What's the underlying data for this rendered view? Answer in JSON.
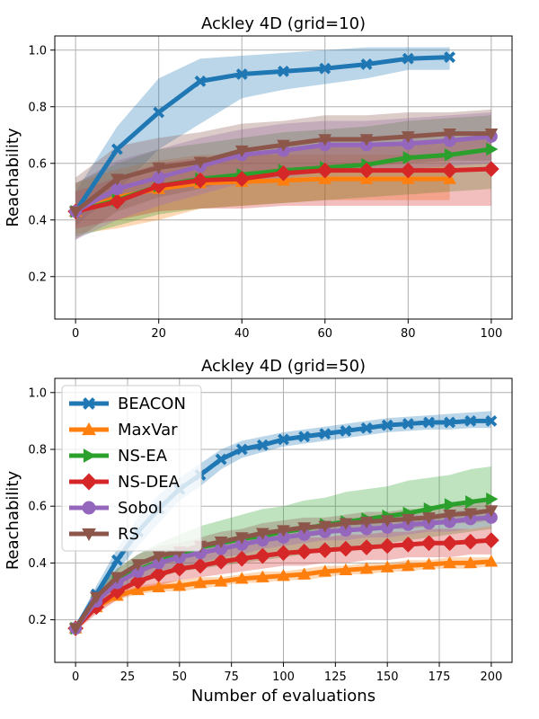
{
  "chart_data": [
    {
      "type": "line",
      "title": "Ackley 4D (grid=10)",
      "xlabel": "",
      "ylabel": "Reachability",
      "xlim": [
        -5,
        105
      ],
      "ylim": [
        0.05,
        1.05
      ],
      "xticks": [
        0,
        20,
        40,
        60,
        80,
        100
      ],
      "yticks": [
        0.2,
        0.4,
        0.6,
        0.8,
        1.0
      ],
      "grid": true,
      "series": [
        {
          "name": "BEACON",
          "color": "#1f77b4",
          "marker": "X",
          "x": [
            0,
            10,
            20,
            30,
            40,
            50,
            60,
            70,
            80,
            90
          ],
          "y": [
            0.43,
            0.65,
            0.78,
            0.89,
            0.915,
            0.925,
            0.935,
            0.95,
            0.97,
            0.975
          ],
          "lower": [
            0.38,
            0.5,
            0.65,
            0.74,
            0.83,
            0.86,
            0.88,
            0.9,
            0.93,
            0.93
          ],
          "upper": [
            0.5,
            0.73,
            0.9,
            0.97,
            0.98,
            0.99,
            1.0,
            1.01,
            1.01,
            1.01
          ]
        },
        {
          "name": "MaxVar",
          "color": "#ff7f0e",
          "marker": "^",
          "x": [
            0,
            10,
            20,
            30,
            40,
            50,
            60,
            70,
            80,
            90
          ],
          "y": [
            0.43,
            0.48,
            0.51,
            0.53,
            0.535,
            0.54,
            0.545,
            0.545,
            0.545,
            0.545
          ],
          "lower": [
            0.35,
            0.37,
            0.4,
            0.44,
            0.45,
            0.46,
            0.47,
            0.47,
            0.47,
            0.47
          ],
          "upper": [
            0.53,
            0.58,
            0.61,
            0.63,
            0.63,
            0.63,
            0.63,
            0.63,
            0.63,
            0.63
          ]
        },
        {
          "name": "NS-EA",
          "color": "#2ca02c",
          "marker": ">",
          "x": [
            0,
            10,
            20,
            30,
            40,
            50,
            60,
            70,
            80,
            90,
            100
          ],
          "y": [
            0.43,
            0.47,
            0.52,
            0.545,
            0.56,
            0.575,
            0.585,
            0.595,
            0.62,
            0.63,
            0.65
          ],
          "lower": [
            0.34,
            0.38,
            0.42,
            0.44,
            0.45,
            0.46,
            0.47,
            0.48,
            0.49,
            0.5,
            0.51
          ],
          "upper": [
            0.53,
            0.6,
            0.65,
            0.67,
            0.69,
            0.71,
            0.72,
            0.73,
            0.75,
            0.76,
            0.77
          ]
        },
        {
          "name": "NS-DEA",
          "color": "#d62728",
          "marker": "D",
          "x": [
            0,
            10,
            20,
            30,
            40,
            50,
            60,
            70,
            80,
            90,
            100
          ],
          "y": [
            0.43,
            0.465,
            0.52,
            0.54,
            0.545,
            0.565,
            0.575,
            0.575,
            0.575,
            0.575,
            0.58
          ],
          "lower": [
            0.37,
            0.4,
            0.43,
            0.44,
            0.44,
            0.45,
            0.45,
            0.45,
            0.45,
            0.45,
            0.45
          ],
          "upper": [
            0.5,
            0.55,
            0.6,
            0.62,
            0.63,
            0.65,
            0.66,
            0.66,
            0.67,
            0.68,
            0.7
          ]
        },
        {
          "name": "Sobol",
          "color": "#9467bd",
          "marker": "o",
          "x": [
            0,
            10,
            20,
            30,
            40,
            50,
            60,
            70,
            80,
            90,
            100
          ],
          "y": [
            0.43,
            0.51,
            0.55,
            0.59,
            0.63,
            0.645,
            0.665,
            0.665,
            0.67,
            0.68,
            0.695
          ],
          "lower": [
            0.33,
            0.4,
            0.45,
            0.49,
            0.53,
            0.55,
            0.57,
            0.57,
            0.58,
            0.59,
            0.6
          ],
          "upper": [
            0.53,
            0.61,
            0.65,
            0.69,
            0.72,
            0.74,
            0.75,
            0.75,
            0.76,
            0.77,
            0.78
          ]
        },
        {
          "name": "RS",
          "color": "#8c564b",
          "marker": "v",
          "x": [
            0,
            10,
            20,
            30,
            40,
            50,
            60,
            70,
            80,
            90,
            100
          ],
          "y": [
            0.43,
            0.545,
            0.585,
            0.605,
            0.645,
            0.665,
            0.685,
            0.685,
            0.695,
            0.705,
            0.705
          ],
          "lower": [
            0.33,
            0.43,
            0.48,
            0.51,
            0.55,
            0.57,
            0.59,
            0.59,
            0.6,
            0.61,
            0.61
          ],
          "upper": [
            0.55,
            0.66,
            0.69,
            0.71,
            0.74,
            0.75,
            0.77,
            0.77,
            0.78,
            0.78,
            0.79
          ]
        }
      ]
    },
    {
      "type": "line",
      "title": "Ackley 4D (grid=50)",
      "xlabel": "Number of evaluations",
      "ylabel": "Reachability",
      "xlim": [
        -10,
        210
      ],
      "ylim": [
        0.05,
        1.05
      ],
      "xticks": [
        0,
        25,
        50,
        75,
        100,
        125,
        150,
        175,
        200
      ],
      "yticks": [
        0.2,
        0.4,
        0.6,
        0.8,
        1.0
      ],
      "grid": true,
      "legend": "upper-left",
      "series": [
        {
          "name": "BEACON",
          "color": "#1f77b4",
          "marker": "X",
          "x": [
            0,
            10,
            20,
            30,
            40,
            50,
            60,
            70,
            80,
            90,
            100,
            110,
            120,
            130,
            140,
            150,
            160,
            170,
            180,
            190,
            200
          ],
          "y": [
            0.17,
            0.29,
            0.41,
            0.51,
            0.59,
            0.66,
            0.71,
            0.765,
            0.8,
            0.815,
            0.835,
            0.845,
            0.855,
            0.865,
            0.875,
            0.885,
            0.89,
            0.895,
            0.895,
            0.9,
            0.9
          ],
          "lower": [
            0.16,
            0.26,
            0.37,
            0.46,
            0.54,
            0.62,
            0.67,
            0.73,
            0.77,
            0.79,
            0.81,
            0.82,
            0.83,
            0.84,
            0.85,
            0.86,
            0.865,
            0.87,
            0.87,
            0.875,
            0.875
          ],
          "upper": [
            0.18,
            0.32,
            0.45,
            0.56,
            0.64,
            0.7,
            0.75,
            0.8,
            0.83,
            0.845,
            0.86,
            0.87,
            0.88,
            0.89,
            0.9,
            0.91,
            0.915,
            0.92,
            0.925,
            0.93,
            0.935
          ]
        },
        {
          "name": "MaxVar",
          "color": "#ff7f0e",
          "marker": "^",
          "x": [
            0,
            10,
            20,
            30,
            40,
            50,
            60,
            70,
            80,
            90,
            100,
            110,
            120,
            130,
            140,
            150,
            160,
            170,
            180,
            190,
            200
          ],
          "y": [
            0.17,
            0.245,
            0.285,
            0.305,
            0.315,
            0.32,
            0.33,
            0.335,
            0.345,
            0.35,
            0.355,
            0.36,
            0.37,
            0.375,
            0.38,
            0.385,
            0.39,
            0.395,
            0.4,
            0.4,
            0.405
          ],
          "lower": [
            0.16,
            0.23,
            0.27,
            0.29,
            0.3,
            0.3,
            0.31,
            0.32,
            0.33,
            0.33,
            0.34,
            0.34,
            0.35,
            0.36,
            0.36,
            0.37,
            0.37,
            0.38,
            0.38,
            0.38,
            0.39
          ],
          "upper": [
            0.18,
            0.26,
            0.3,
            0.32,
            0.33,
            0.34,
            0.35,
            0.35,
            0.36,
            0.37,
            0.37,
            0.38,
            0.39,
            0.39,
            0.4,
            0.4,
            0.41,
            0.41,
            0.42,
            0.42,
            0.42
          ]
        },
        {
          "name": "NS-EA",
          "color": "#2ca02c",
          "marker": ">",
          "x": [
            0,
            10,
            20,
            30,
            40,
            50,
            60,
            70,
            80,
            90,
            100,
            110,
            120,
            130,
            140,
            150,
            160,
            170,
            180,
            190,
            200
          ],
          "y": [
            0.17,
            0.265,
            0.34,
            0.375,
            0.405,
            0.43,
            0.455,
            0.47,
            0.485,
            0.495,
            0.51,
            0.52,
            0.535,
            0.545,
            0.555,
            0.565,
            0.575,
            0.59,
            0.605,
            0.615,
            0.625
          ],
          "lower": [
            0.16,
            0.24,
            0.3,
            0.33,
            0.35,
            0.37,
            0.38,
            0.39,
            0.4,
            0.41,
            0.42,
            0.43,
            0.44,
            0.45,
            0.46,
            0.47,
            0.48,
            0.49,
            0.5,
            0.51,
            0.52
          ],
          "upper": [
            0.18,
            0.3,
            0.38,
            0.43,
            0.47,
            0.5,
            0.53,
            0.55,
            0.57,
            0.59,
            0.6,
            0.62,
            0.63,
            0.65,
            0.66,
            0.67,
            0.69,
            0.7,
            0.71,
            0.73,
            0.74
          ]
        },
        {
          "name": "NS-DEA",
          "color": "#d62728",
          "marker": "D",
          "x": [
            0,
            10,
            20,
            30,
            40,
            50,
            60,
            70,
            80,
            90,
            100,
            110,
            120,
            130,
            140,
            150,
            160,
            170,
            180,
            190,
            200
          ],
          "y": [
            0.17,
            0.245,
            0.3,
            0.335,
            0.36,
            0.38,
            0.39,
            0.405,
            0.415,
            0.425,
            0.435,
            0.44,
            0.445,
            0.45,
            0.455,
            0.46,
            0.465,
            0.47,
            0.47,
            0.475,
            0.48
          ],
          "lower": [
            0.16,
            0.22,
            0.27,
            0.3,
            0.32,
            0.34,
            0.35,
            0.36,
            0.37,
            0.38,
            0.39,
            0.39,
            0.4,
            0.4,
            0.41,
            0.41,
            0.42,
            0.42,
            0.42,
            0.43,
            0.43
          ],
          "upper": [
            0.18,
            0.27,
            0.33,
            0.37,
            0.4,
            0.42,
            0.43,
            0.45,
            0.46,
            0.47,
            0.48,
            0.49,
            0.49,
            0.5,
            0.5,
            0.51,
            0.51,
            0.52,
            0.52,
            0.52,
            0.53
          ]
        },
        {
          "name": "Sobol",
          "color": "#9467bd",
          "marker": "o",
          "x": [
            0,
            10,
            20,
            30,
            40,
            50,
            60,
            70,
            80,
            90,
            100,
            110,
            120,
            130,
            140,
            150,
            160,
            170,
            180,
            190,
            200
          ],
          "y": [
            0.17,
            0.265,
            0.33,
            0.37,
            0.4,
            0.42,
            0.435,
            0.45,
            0.465,
            0.48,
            0.49,
            0.5,
            0.51,
            0.515,
            0.52,
            0.525,
            0.535,
            0.54,
            0.545,
            0.555,
            0.56
          ],
          "lower": [
            0.16,
            0.24,
            0.3,
            0.34,
            0.37,
            0.39,
            0.4,
            0.42,
            0.43,
            0.45,
            0.46,
            0.47,
            0.48,
            0.48,
            0.49,
            0.49,
            0.5,
            0.51,
            0.51,
            0.52,
            0.53
          ],
          "upper": [
            0.18,
            0.29,
            0.36,
            0.4,
            0.43,
            0.45,
            0.47,
            0.48,
            0.5,
            0.51,
            0.52,
            0.53,
            0.54,
            0.55,
            0.55,
            0.56,
            0.57,
            0.57,
            0.58,
            0.59,
            0.59
          ]
        },
        {
          "name": "RS",
          "color": "#8c564b",
          "marker": "v",
          "x": [
            0,
            10,
            20,
            30,
            40,
            50,
            60,
            70,
            80,
            90,
            100,
            110,
            120,
            130,
            140,
            150,
            160,
            170,
            180,
            190,
            200
          ],
          "y": [
            0.17,
            0.28,
            0.35,
            0.395,
            0.425,
            0.44,
            0.46,
            0.475,
            0.49,
            0.505,
            0.515,
            0.525,
            0.53,
            0.54,
            0.545,
            0.55,
            0.555,
            0.56,
            0.57,
            0.575,
            0.585
          ],
          "lower": [
            0.16,
            0.25,
            0.32,
            0.36,
            0.39,
            0.41,
            0.43,
            0.44,
            0.46,
            0.47,
            0.48,
            0.49,
            0.5,
            0.51,
            0.51,
            0.52,
            0.52,
            0.53,
            0.54,
            0.54,
            0.55
          ],
          "upper": [
            0.18,
            0.31,
            0.38,
            0.43,
            0.46,
            0.47,
            0.49,
            0.51,
            0.52,
            0.54,
            0.55,
            0.56,
            0.56,
            0.57,
            0.58,
            0.58,
            0.59,
            0.59,
            0.6,
            0.61,
            0.62
          ]
        }
      ]
    }
  ]
}
